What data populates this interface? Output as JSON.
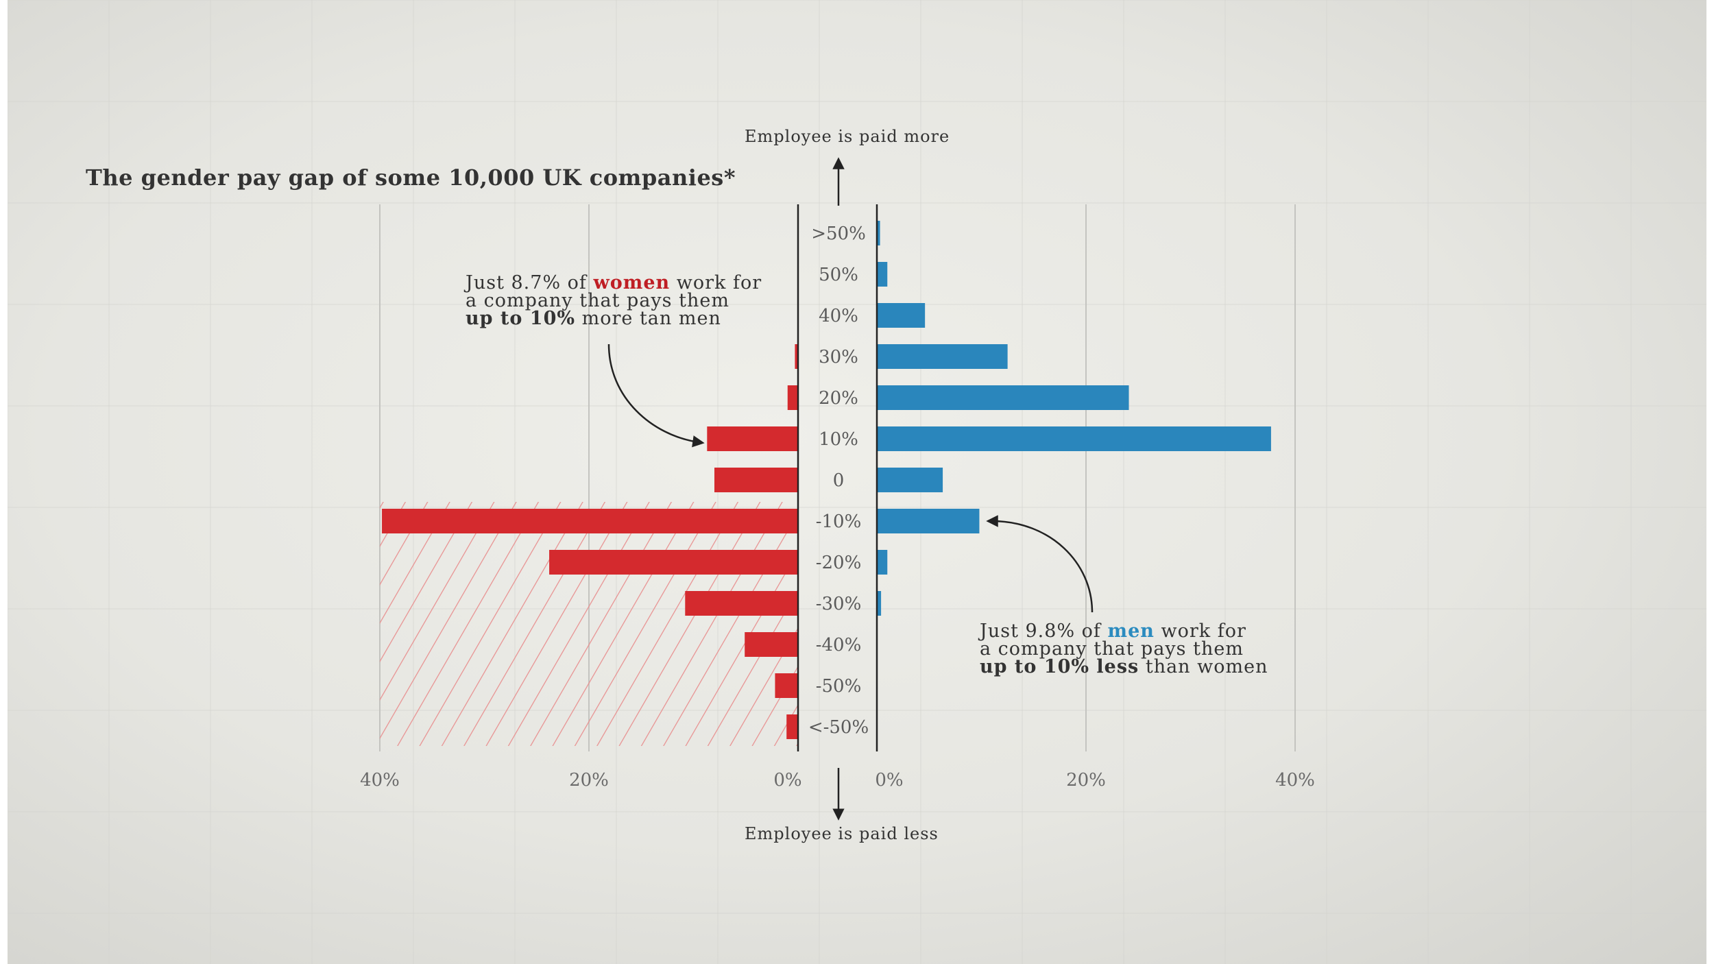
{
  "title": "The gender pay gap of some 10,000 UK companies*",
  "axis_top_label": "Employee is paid more",
  "axis_bottom_label": "Employee is paid less",
  "annotation_women": {
    "line1_pre": "Just 8.7% of ",
    "line1_highlight": "women",
    "line1_post": " work for",
    "line2": "a company that pays them",
    "line3_bold": "up to 10%",
    "line3_post": " more tan men"
  },
  "annotation_men": {
    "line1_pre": "Just 9.8% of ",
    "line1_highlight": "men",
    "line1_post": " work for",
    "line2": "a company that pays them",
    "line3_bold": "up to 10% less",
    "line3_post": " than women"
  },
  "colors": {
    "women": "#d42a2e",
    "men": "#2a86bc",
    "hatch": "#e89090",
    "text": "#333333",
    "axis": "#222222",
    "gridline": "#c4c4c0"
  },
  "chart_data": {
    "type": "bar",
    "orientation": "horizontal",
    "layout": "butterfly",
    "title": "The gender pay gap of some 10,000 UK companies*",
    "categories": [
      ">50%",
      "50%",
      "40%",
      "30%",
      "20%",
      "10%",
      "0",
      "-10%",
      "-20%",
      "-30%",
      "-40%",
      "-50%",
      "<-50%"
    ],
    "series": [
      {
        "name": "women",
        "side": "left",
        "values": [
          0.0,
          0.0,
          0.0,
          0.3,
          1.0,
          8.7,
          8.0,
          39.8,
          23.8,
          10.8,
          5.1,
          2.2,
          1.1
        ]
      },
      {
        "name": "men",
        "side": "right",
        "values": [
          0.3,
          1.0,
          4.6,
          12.5,
          24.1,
          37.7,
          6.3,
          9.8,
          1.0,
          0.4,
          0.0,
          0.0,
          0.0
        ]
      }
    ],
    "xlim": [
      0,
      40
    ],
    "x_ticks_left": [
      "40%",
      "20%",
      "0%"
    ],
    "x_ticks_right": [
      "0%",
      "20%",
      "40%"
    ],
    "hatched_region": {
      "series": "women",
      "from_category": "-10%",
      "to_category": "<-50%"
    },
    "grid": true
  }
}
